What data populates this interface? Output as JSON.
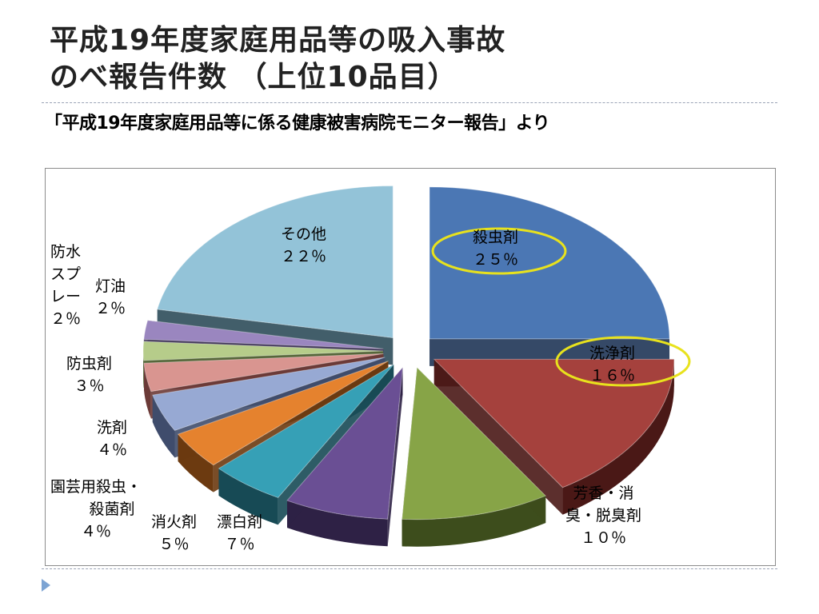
{
  "title_line1": "平成19年度家庭用品等の吸入事故",
  "title_line2": "のべ報告件数 （上位10品目）",
  "subtitle": "「平成19年度家庭用品等に係る健康被害病院モニター報告」より",
  "chart_data": {
    "type": "pie",
    "title": "平成19年度家庭用品等の吸入事故のべ報告件数 （上位10品目）",
    "slices": [
      {
        "label": "殺虫剤",
        "pct_text": "２５％",
        "value": 25,
        "color": "#4b77b4",
        "dark": "#1f3556",
        "highlight": true
      },
      {
        "label": "洗浄剤",
        "pct_text": "１６％",
        "value": 16,
        "color": "#a5413d",
        "dark": "#4a1816",
        "highlight": true
      },
      {
        "label": "芳香・消臭・脱臭剤",
        "pct_text": "１０％",
        "value": 10,
        "color": "#87a447",
        "dark": "#3d4d1c",
        "highlight": false
      },
      {
        "label": "漂白剤",
        "pct_text": "７％",
        "value": 7,
        "color": "#6a4f94",
        "dark": "#2e2145",
        "highlight": false
      },
      {
        "label": "消火剤",
        "pct_text": "５％",
        "value": 5,
        "color": "#36a0b6",
        "dark": "#174a55",
        "highlight": false
      },
      {
        "label": "園芸用殺虫・殺菌剤",
        "pct_text": "４％",
        "value": 4,
        "color": "#e5822e",
        "dark": "#6c3a10",
        "highlight": false
      },
      {
        "label": "洗剤",
        "pct_text": "４％",
        "value": 4,
        "color": "#97a9d3",
        "dark": "#3f4c6c",
        "highlight": false
      },
      {
        "label": "防虫剤",
        "pct_text": "３％",
        "value": 3,
        "color": "#d99590",
        "dark": "#6b3a37",
        "highlight": false
      },
      {
        "label": "防水スプレー",
        "pct_text": "２％",
        "value": 2,
        "color": "#b6cc8a",
        "dark": "#56673a",
        "highlight": false
      },
      {
        "label": "灯油",
        "pct_text": "２％",
        "value": 2,
        "color": "#9a86bf",
        "dark": "#453a5c",
        "highlight": false
      },
      {
        "label": "その他",
        "pct_text": "２２％",
        "value": 22,
        "color": "#93c3d8",
        "dark": "#2e4c5a",
        "highlight": false
      }
    ]
  },
  "labels": {
    "satchuzai": {
      "name": "殺虫剤",
      "pct": "２５％"
    },
    "senjozai": {
      "name": "洗浄剤",
      "pct": "１６％"
    },
    "hoko": {
      "name_line1": "芳香・消",
      "name_line2": "臭・脱臭剤",
      "pct": "１０％"
    },
    "hyohaku": {
      "name": "漂白剤",
      "pct": "７％"
    },
    "shoka": {
      "name": "消火剤",
      "pct": "５％"
    },
    "engei": {
      "name_line1": "園芸用殺虫・",
      "name_line2": "殺菌剤",
      "pct": "４％"
    },
    "senzai": {
      "name": "洗剤",
      "pct": "４％"
    },
    "bochu": {
      "name": "防虫剤",
      "pct": "３％"
    },
    "bosui": {
      "name_line1": "防水",
      "name_line2": "スプ",
      "name_line3": "レー",
      "pct": "２％"
    },
    "toyu": {
      "name": "灯油",
      "pct": "２％"
    },
    "sonota": {
      "name": "その他",
      "pct": "２２％"
    }
  },
  "colors": {
    "highlight_ring": "#e8e21d",
    "separator": "#9aa3b5",
    "nav_triangle": "#7da4d3"
  }
}
